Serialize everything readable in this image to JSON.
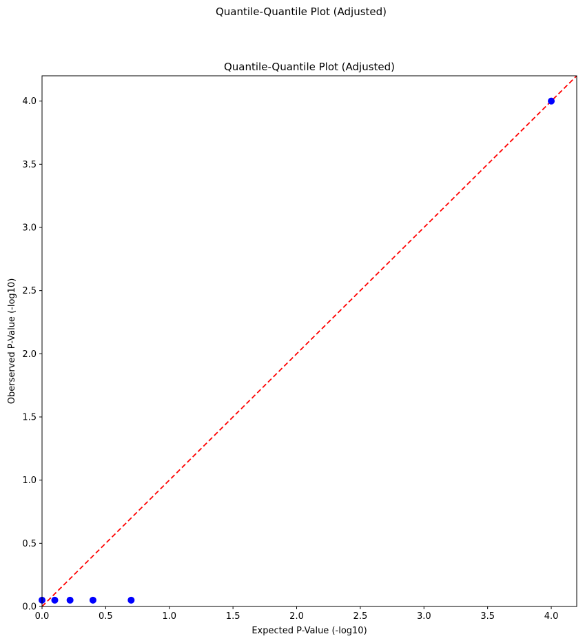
{
  "chart_data": {
    "type": "scatter",
    "suptitle": "Quantile-Quantile Plot (Adjusted)",
    "title": "Quantile-Quantile Plot (Adjusted)",
    "xlabel": "Expected P-Value (-log10)",
    "ylabel": "Oberserved P-Value (-log10)",
    "xlim": [
      0,
      4.2
    ],
    "ylim": [
      0,
      4.2
    ],
    "xticks": [
      0,
      0.5,
      1,
      1.5,
      2,
      2.5,
      3,
      3.5,
      4
    ],
    "xtick_labels": [
      "0.0",
      "0.5",
      "1.0",
      "1.5",
      "2.0",
      "2.5",
      "3.0",
      "3.5",
      "4.0"
    ],
    "yticks": [
      0,
      0.5,
      1,
      1.5,
      2,
      2.5,
      3,
      3.5,
      4
    ],
    "ytick_labels": [
      "0.0",
      "0.5",
      "1.0",
      "1.5",
      "2.0",
      "2.5",
      "3.0",
      "3.5",
      "4.0"
    ],
    "grid": false,
    "points": {
      "color": "#0000ff",
      "x": [
        0.0,
        0.1,
        0.22,
        0.4,
        0.7,
        4.0
      ],
      "y": [
        0.05,
        0.05,
        0.05,
        0.05,
        0.05,
        4.0
      ]
    },
    "reference_line": {
      "color": "#ff0000",
      "style": "dashed",
      "x": [
        0,
        4.2
      ],
      "y": [
        0,
        4.2
      ]
    }
  }
}
